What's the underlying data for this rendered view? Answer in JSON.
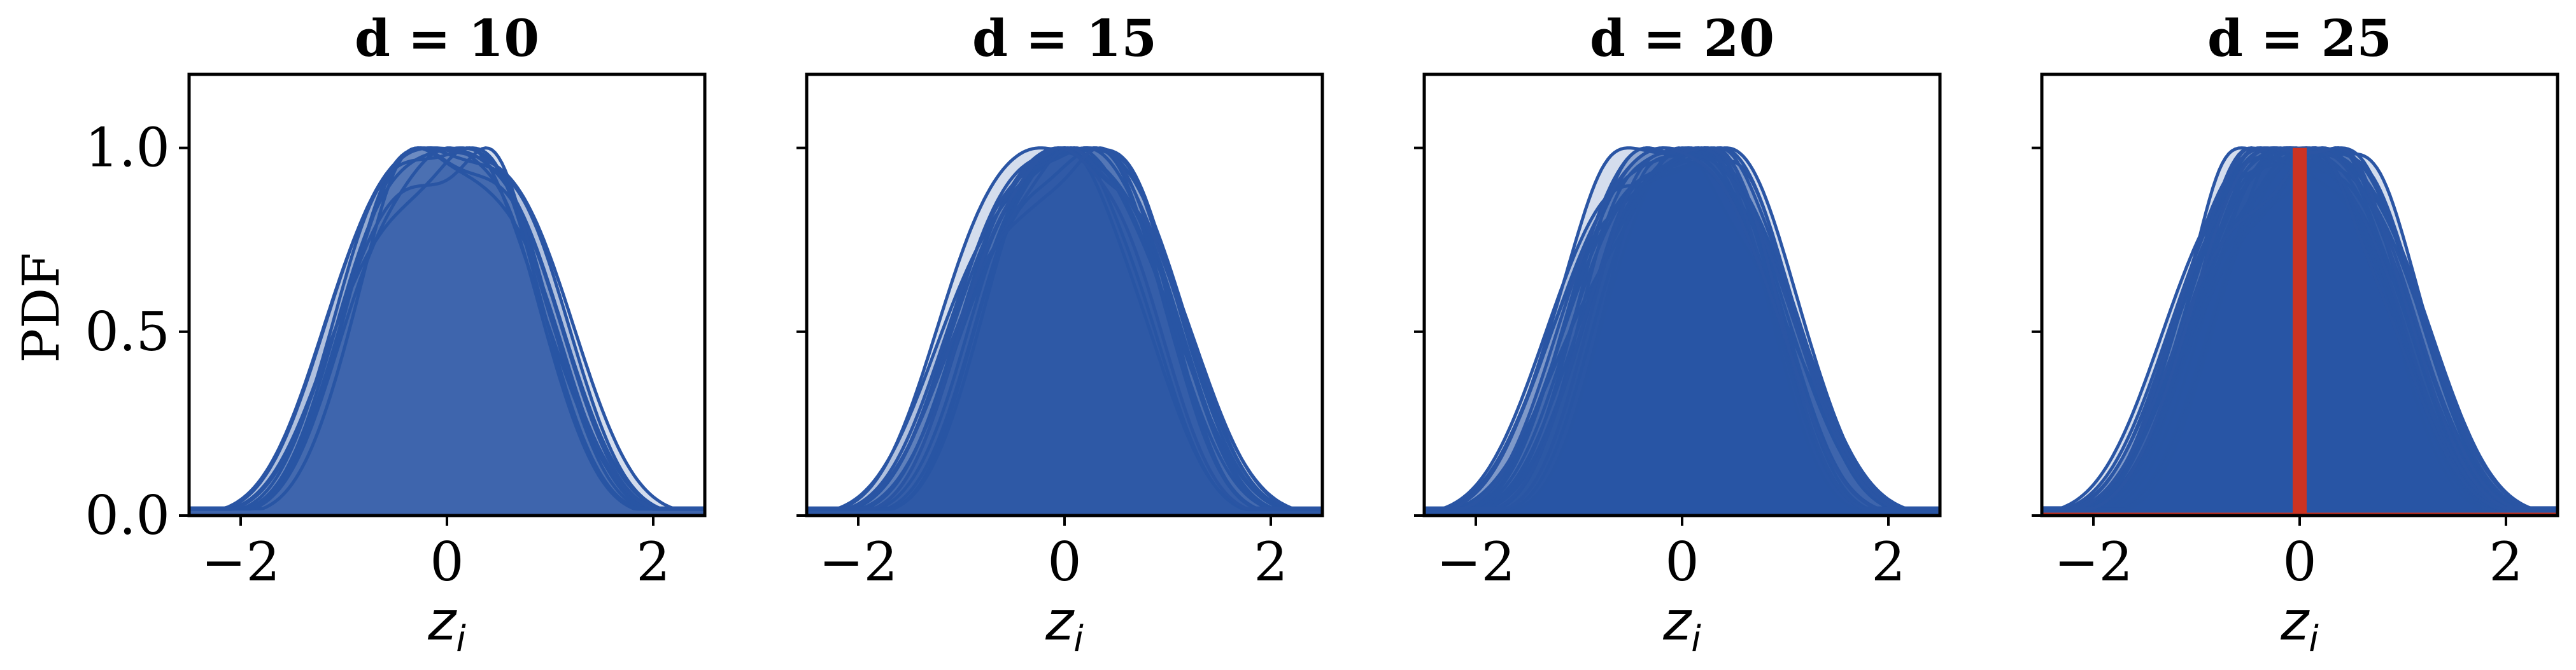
{
  "colors": {
    "curve": "#2a55a4",
    "fill": "#2a55a4",
    "highlight": "#cc3322",
    "axis": "#000000",
    "background": "#ffffff"
  },
  "chart_data": [
    {
      "type": "area",
      "title": "d = 10",
      "xlabel": "z_i",
      "ylabel": "PDF",
      "xlim": [
        -2.5,
        2.5
      ],
      "ylim": [
        0,
        1.2
      ],
      "xticks": [
        -2,
        0,
        2
      ],
      "yticks": [
        0.0,
        0.5,
        1.0
      ],
      "xtick_labels": [
        "−2",
        "0",
        "2"
      ],
      "ytick_labels": [
        "0.0",
        "0.5",
        "1.0"
      ],
      "grid": false,
      "curve_count": 10,
      "curve_peak": 1.0,
      "highlight": null
    },
    {
      "type": "area",
      "title": "d = 15",
      "xlabel": "z_i",
      "ylabel": "",
      "xlim": [
        -2.5,
        2.5
      ],
      "ylim": [
        0,
        1.2
      ],
      "xticks": [
        -2,
        0,
        2
      ],
      "yticks": [
        0.0,
        0.5,
        1.0
      ],
      "xtick_labels": [
        "−2",
        "0",
        "2"
      ],
      "ytick_labels": [],
      "grid": false,
      "curve_count": 15,
      "curve_peak": 1.0,
      "highlight": null
    },
    {
      "type": "area",
      "title": "d = 20",
      "xlabel": "z_i",
      "ylabel": "",
      "xlim": [
        -2.5,
        2.5
      ],
      "ylim": [
        0,
        1.2
      ],
      "xticks": [
        -2,
        0,
        2
      ],
      "yticks": [
        0.0,
        0.5,
        1.0
      ],
      "xtick_labels": [
        "−2",
        "0",
        "2"
      ],
      "ytick_labels": [],
      "grid": false,
      "curve_count": 20,
      "curve_peak": 1.0,
      "highlight": null
    },
    {
      "type": "area",
      "title": "d = 25",
      "xlabel": "z_i",
      "ylabel": "",
      "xlim": [
        -2.5,
        2.5
      ],
      "ylim": [
        0,
        1.2
      ],
      "xticks": [
        -2,
        0,
        2
      ],
      "yticks": [
        0.0,
        0.5,
        1.0
      ],
      "xtick_labels": [
        "−2",
        "0",
        "2"
      ],
      "ytick_labels": [],
      "grid": false,
      "curve_count": 25,
      "curve_peak": 1.0,
      "highlight": {
        "x": 0.0,
        "ymax": 1.0,
        "color": "#cc3322"
      }
    }
  ]
}
